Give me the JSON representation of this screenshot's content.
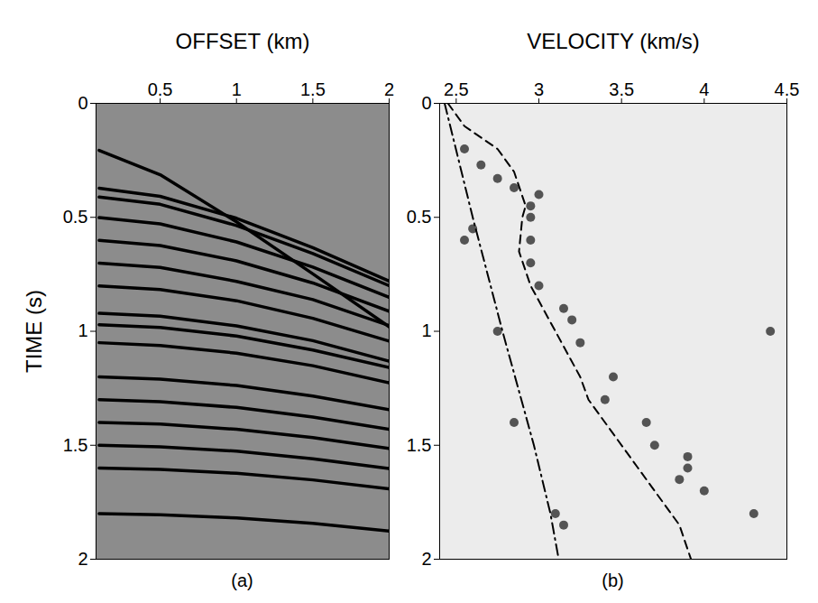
{
  "chart_data": [
    {
      "type": "line",
      "xlabel": "OFFSET (km)",
      "ylabel": "TIME (s)",
      "caption": "(a)",
      "xlim": [
        0.08,
        2
      ],
      "xticks": [
        0.5,
        1,
        1.5,
        2
      ],
      "ylim": [
        0,
        2
      ],
      "yticks": [
        0,
        0.5,
        1,
        1.5,
        2
      ],
      "x": [
        0.1,
        0.5,
        1,
        1.5,
        2
      ],
      "series": [
        {
          "color": "#000000",
          "values": [
            0.206,
            0.313,
            0.52,
            0.748,
            0.98
          ]
        },
        {
          "color": "#000000",
          "values": [
            0.372,
            0.408,
            0.504,
            0.633,
            0.78
          ]
        },
        {
          "color": "#000000",
          "values": [
            0.411,
            0.443,
            0.536,
            0.659,
            0.8
          ]
        },
        {
          "color": "#000000",
          "values": [
            0.501,
            0.529,
            0.608,
            0.718,
            0.851
          ]
        },
        {
          "color": "#000000",
          "values": [
            0.601,
            0.624,
            0.691,
            0.788,
            0.912
          ]
        },
        {
          "color": "#000000",
          "values": [
            0.701,
            0.72,
            0.781,
            0.861,
            0.975
          ]
        },
        {
          "color": "#000000",
          "values": [
            0.801,
            0.817,
            0.866,
            0.943,
            1.043
          ]
        },
        {
          "color": "#000000",
          "values": [
            0.921,
            0.934,
            0.976,
            1.041,
            1.131
          ]
        },
        {
          "color": "#000000",
          "values": [
            0.971,
            0.983,
            1.021,
            1.082,
            1.159
          ]
        },
        {
          "color": "#000000",
          "values": [
            1.05,
            1.062,
            1.096,
            1.151,
            1.226
          ]
        },
        {
          "color": "#000000",
          "values": [
            1.2,
            1.21,
            1.238,
            1.284,
            1.344
          ]
        },
        {
          "color": "#000000",
          "values": [
            1.3,
            1.309,
            1.334,
            1.376,
            1.43
          ]
        },
        {
          "color": "#000000",
          "values": [
            1.4,
            1.407,
            1.43,
            1.466,
            1.514
          ]
        },
        {
          "color": "#000000",
          "values": [
            1.5,
            1.507,
            1.526,
            1.559,
            1.602
          ]
        },
        {
          "color": "#000000",
          "values": [
            1.6,
            1.606,
            1.623,
            1.652,
            1.691
          ]
        },
        {
          "color": "#000000",
          "values": [
            1.8,
            1.805,
            1.819,
            1.843,
            1.876
          ]
        }
      ]
    },
    {
      "type": "line",
      "xlabel": "VELOCITY (km/s)",
      "caption": "(b)",
      "xlim": [
        2.4,
        4.5
      ],
      "xticks": [
        2.5,
        3,
        3.5,
        4,
        4.5
      ],
      "ylim": [
        0,
        2
      ],
      "yticks": [
        0,
        0.5,
        1,
        1.5,
        2
      ],
      "series": [
        {
          "type": "scatter",
          "marker": "dot",
          "color": "#3a3a3a",
          "x": [
            2.55,
            2.65,
            2.75,
            2.85,
            3.0,
            2.95,
            2.95,
            2.6,
            2.55,
            2.95,
            2.95,
            3.0,
            3.15,
            3.2,
            2.75,
            4.4,
            3.25,
            3.45,
            3.4,
            2.85,
            3.65,
            3.7,
            3.9,
            3.9,
            3.85,
            4.0,
            3.1,
            4.3,
            3.15
          ],
          "y": [
            0.2,
            0.27,
            0.33,
            0.37,
            0.4,
            0.45,
            0.5,
            0.55,
            0.6,
            0.6,
            0.7,
            0.8,
            0.9,
            0.95,
            1.0,
            1.0,
            1.05,
            1.2,
            1.3,
            1.4,
            1.4,
            1.5,
            1.55,
            1.6,
            1.65,
            1.7,
            1.8,
            1.8,
            1.85
          ]
        },
        {
          "type": "line",
          "line_style": "dashed",
          "color": "#000000",
          "x": [
            2.45,
            2.55,
            2.75,
            2.85,
            2.92,
            2.9,
            2.88,
            2.95,
            3.1,
            3.25,
            3.3,
            3.4,
            3.6,
            3.75,
            3.85,
            3.92
          ],
          "y": [
            0,
            0.1,
            0.2,
            0.3,
            0.45,
            0.5,
            0.65,
            0.8,
            1.0,
            1.2,
            1.3,
            1.4,
            1.6,
            1.75,
            1.85,
            2.0
          ]
        },
        {
          "type": "line",
          "line_style": "dashdot",
          "color": "#000000",
          "x": [
            2.43,
            2.6,
            2.78,
            2.97,
            3.07,
            3.12
          ],
          "y": [
            0,
            0.5,
            1,
            1.5,
            1.8,
            2
          ]
        }
      ]
    }
  ]
}
